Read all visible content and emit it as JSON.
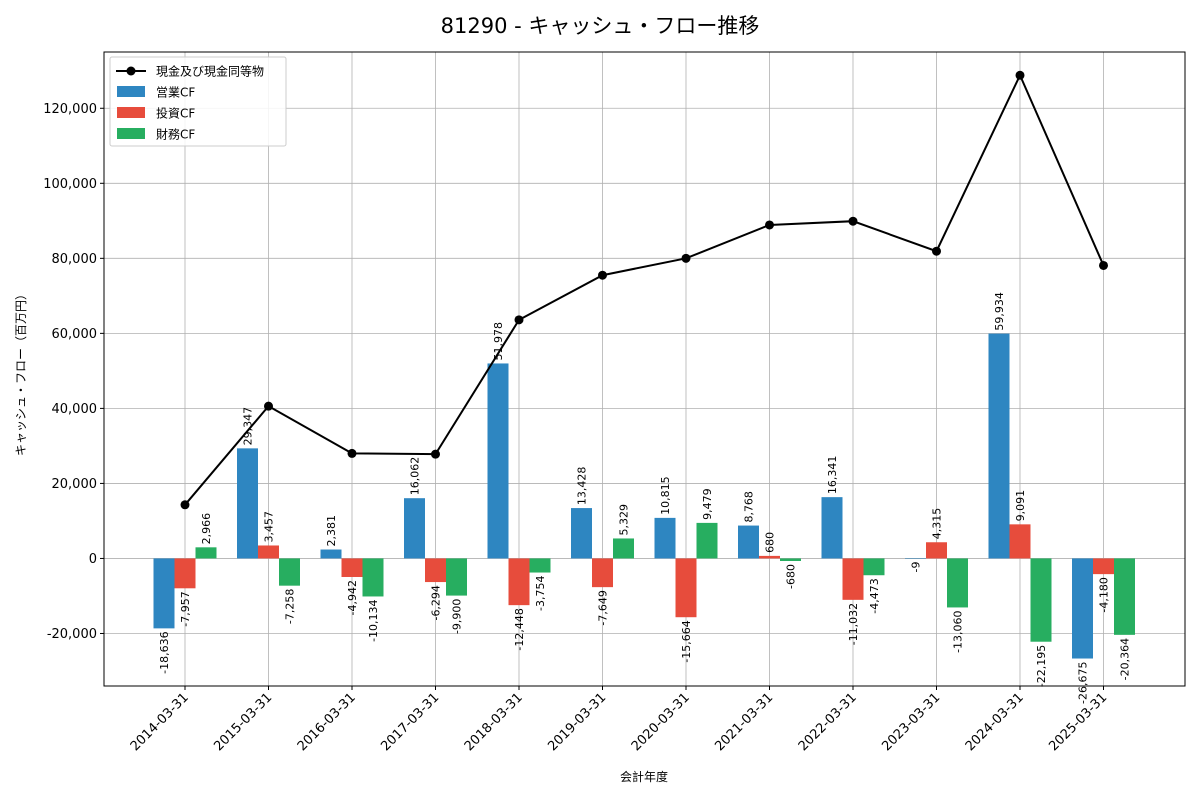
{
  "chart_data": {
    "type": "bar",
    "title": "81290 - キャッシュ・フロー推移",
    "xlabel": "会計年度",
    "ylabel": "キャッシュ・フロー（百万円）",
    "ylim": [
      -34000,
      135000
    ],
    "yticks": [
      -20000,
      0,
      20000,
      40000,
      60000,
      80000,
      100000,
      120000
    ],
    "ytick_labels": [
      "-20,000",
      "0",
      "20,000",
      "40,000",
      "60,000",
      "80,000",
      "100,000",
      "120,000"
    ],
    "grid": true,
    "legend_position": "top-left",
    "categories": [
      "2014-03-31",
      "2015-03-31",
      "2016-03-31",
      "2017-03-31",
      "2018-03-31",
      "2019-03-31",
      "2020-03-31",
      "2021-03-31",
      "2022-03-31",
      "2023-03-31",
      "2024-03-31",
      "2025-03-31"
    ],
    "series": [
      {
        "name": "営業CF",
        "kind": "bar",
        "color": "#2e86c1",
        "values": [
          -18636,
          29347,
          2381,
          16062,
          51978,
          13428,
          10815,
          8768,
          16341,
          -9,
          59934,
          -26675
        ],
        "labels": [
          "-18,636",
          "29,347",
          "2,381",
          "16,062",
          "51,978",
          "13,428",
          "10,815",
          "8,768",
          "16,341",
          "-9",
          "59,934",
          "-26,675"
        ]
      },
      {
        "name": "投資CF",
        "kind": "bar",
        "color": "#e74c3c",
        "values": [
          -7957,
          3457,
          -4942,
          -6294,
          -12448,
          -7649,
          -15664,
          680,
          -11032,
          4315,
          9091,
          -4180
        ],
        "labels": [
          "-7,957",
          "3,457",
          "-4,942",
          "-6,294",
          "-12,448",
          "-7,649",
          "-15,664",
          "680",
          "-11,032",
          "4,315",
          "9,091",
          "-4,180"
        ]
      },
      {
        "name": "財務CF",
        "kind": "bar",
        "color": "#27ae60",
        "values": [
          2966,
          -7258,
          -10134,
          -9900,
          -3754,
          5329,
          9479,
          -680,
          -4473,
          -13060,
          -22195,
          -20364
        ],
        "labels": [
          "2,966",
          "-7,258",
          "-10,134",
          "-9,900",
          "-3,754",
          "5,329",
          "9,479",
          "-680",
          "-4,473",
          "-13,060",
          "-22,195",
          "-20,364"
        ]
      },
      {
        "name": "現金及び現金同等物",
        "kind": "line",
        "color": "#000000",
        "values": [
          14300,
          40600,
          28000,
          27800,
          63600,
          75500,
          80000,
          88900,
          89900,
          81900,
          128800,
          78100
        ]
      }
    ]
  }
}
